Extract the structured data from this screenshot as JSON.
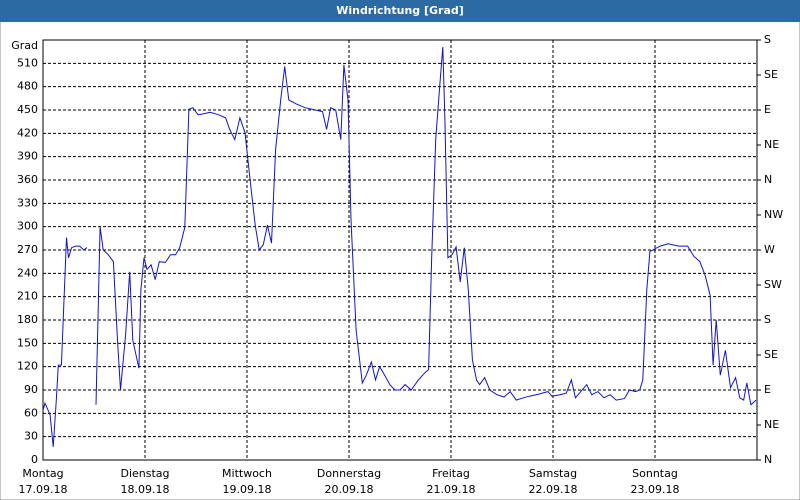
{
  "chart_data": {
    "type": "line",
    "title": "Windrichtung [Grad]",
    "y_label": "Grad",
    "color": "#1414c8",
    "grid": true,
    "x": [
      0,
      0.02,
      0.05,
      0.07,
      0.1,
      0.13,
      0.15,
      0.18,
      0.23,
      0.25,
      0.28,
      0.32,
      0.36,
      0.4,
      0.43,
      0.47,
      0.52,
      0.56,
      0.59,
      0.64,
      0.69,
      0.73,
      0.76,
      0.81,
      0.85,
      0.88,
      0.94,
      0.96,
      0.99,
      1.02,
      1.06,
      1.1,
      1.14,
      1.2,
      1.25,
      1.3,
      1.34,
      1.39,
      1.43,
      1.47,
      1.52,
      1.57,
      1.64,
      1.72,
      1.79,
      1.83,
      1.88,
      1.93,
      1.98,
      2.03,
      2.08,
      2.12,
      2.16,
      2.2,
      2.24,
      2.28,
      2.33,
      2.37,
      2.41,
      2.48,
      2.57,
      2.67,
      2.74,
      2.78,
      2.82,
      2.87,
      2.92,
      2.95,
      2.99,
      3.02,
      3.07,
      3.13,
      3.17,
      3.22,
      3.26,
      3.3,
      3.35,
      3.4,
      3.45,
      3.5,
      3.55,
      3.61,
      3.68,
      3.75,
      3.78,
      3.81,
      3.85,
      3.89,
      3.92,
      3.94,
      3.97,
      4.01,
      4.05,
      4.09,
      4.13,
      4.17,
      4.21,
      4.25,
      4.28,
      4.33,
      4.38,
      4.45,
      4.52,
      4.58,
      4.64,
      4.71,
      4.77,
      4.87,
      4.95,
      4.99,
      5.07,
      5.13,
      5.18,
      5.22,
      5.26,
      5.33,
      5.38,
      5.44,
      5.5,
      5.56,
      5.62,
      5.7,
      5.75,
      5.81,
      5.85,
      5.88,
      5.92,
      5.95,
      6.05,
      6.13,
      6.23,
      6.32,
      6.38,
      6.44,
      6.49,
      6.54,
      6.57,
      6.6,
      6.64,
      6.69,
      6.74,
      6.79,
      6.83,
      6.87,
      6.9,
      6.94,
      6.99
    ],
    "values": [
      64,
      73,
      64,
      58,
      17,
      77,
      122,
      122,
      286,
      260,
      273,
      275,
      275,
      270,
      273,
      null,
      71,
      300,
      270,
      264,
      255,
      154,
      90,
      161,
      242,
      154,
      118,
      219,
      260,
      245,
      251,
      232,
      255,
      254,
      264,
      264,
      273,
      299,
      451,
      453,
      444,
      445,
      447,
      444,
      440,
      425,
      412,
      440,
      421,
      360,
      302,
      270,
      277,
      302,
      279,
      399,
      463,
      506,
      463,
      458,
      453,
      450,
      448,
      425,
      453,
      450,
      412,
      508,
      463,
      309,
      167,
      99,
      109,
      126,
      103,
      120,
      109,
      97,
      90,
      90,
      97,
      90,
      103,
      113,
      116,
      257,
      412,
      482,
      531,
      438,
      260,
      264,
      274,
      229,
      273,
      219,
      129,
      103,
      97,
      106,
      90,
      84,
      81,
      88,
      77,
      80,
      82,
      85,
      88,
      82,
      84,
      86,
      103,
      80,
      86,
      97,
      84,
      88,
      80,
      84,
      77,
      79,
      90,
      88,
      90,
      103,
      219,
      268,
      275,
      278,
      275,
      275,
      262,
      255,
      238,
      212,
      122,
      180,
      109,
      141,
      93,
      106,
      80,
      77,
      99,
      71,
      77
    ],
    "xlim": [
      0,
      7
    ],
    "xticks": [
      {
        "value": 0,
        "label": "Montag",
        "date": "17.09.18"
      },
      {
        "value": 1,
        "label": "Dienstag",
        "date": "18.09.18"
      },
      {
        "value": 2,
        "label": "Mittwoch",
        "date": "19.09.18"
      },
      {
        "value": 3,
        "label": "Donnerstag",
        "date": "20.09.18"
      },
      {
        "value": 4,
        "label": "Freitag",
        "date": "21.09.18"
      },
      {
        "value": 5,
        "label": "Samstag",
        "date": "22.09.18"
      },
      {
        "value": 6,
        "label": "Sonntag",
        "date": "23.09.18"
      }
    ],
    "ylim": [
      0,
      540
    ],
    "yticks": [
      0,
      30,
      60,
      90,
      120,
      150,
      180,
      210,
      240,
      270,
      300,
      330,
      360,
      390,
      420,
      450,
      480,
      510
    ],
    "y2lim": [
      0,
      540
    ],
    "y2ticks": [
      {
        "value": 0,
        "label": "N"
      },
      {
        "value": 45,
        "label": "NE"
      },
      {
        "value": 90,
        "label": "E"
      },
      {
        "value": 135,
        "label": "SE"
      },
      {
        "value": 180,
        "label": "S"
      },
      {
        "value": 225,
        "label": "SW"
      },
      {
        "value": 270,
        "label": "W"
      },
      {
        "value": 315,
        "label": "NW"
      },
      {
        "value": 360,
        "label": "N"
      },
      {
        "value": 405,
        "label": "NE"
      },
      {
        "value": 450,
        "label": "E"
      },
      {
        "value": 495,
        "label": "SE"
      },
      {
        "value": 540,
        "label": "S"
      }
    ]
  }
}
